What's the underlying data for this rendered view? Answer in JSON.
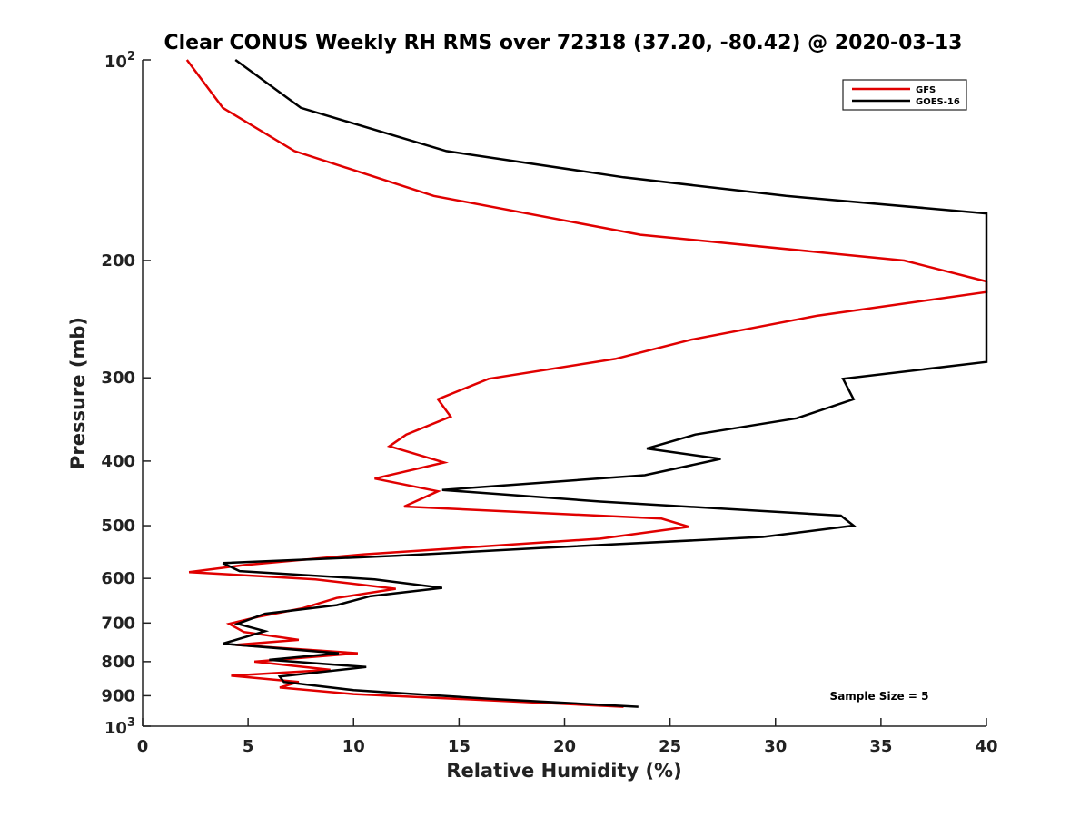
{
  "chart_data": {
    "type": "line",
    "title": "Clear CONUS Weekly RH RMS over 72318 (37.20, -80.42) @ 2020-03-13",
    "xlabel": "Relative Humidity (%)",
    "ylabel": "Pressure (mb)",
    "xlim": [
      0,
      40
    ],
    "ylim": [
      100,
      1000
    ],
    "y_scale": "log",
    "y_reversed": true,
    "grid": false,
    "legend_position": "top-right",
    "x_ticks": [
      0,
      5,
      10,
      15,
      20,
      25,
      30,
      35,
      40
    ],
    "x_tick_labels": [
      "0",
      "5",
      "10",
      "15",
      "20",
      "25",
      "30",
      "35",
      "40"
    ],
    "y_ticks": [
      200,
      300,
      400,
      500,
      600,
      700,
      800,
      900
    ],
    "y_tick_labels": [
      "200",
      "300",
      "400",
      "500",
      "600",
      "700",
      "800",
      "900"
    ],
    "y_end_labels": [
      {
        "value": 100,
        "base": "10",
        "exp": "2"
      },
      {
        "value": 1000,
        "base": "10",
        "exp": "3"
      }
    ],
    "annotation": "Sample Size = 5",
    "series": [
      {
        "name": "GFS",
        "color": "#e00000",
        "points": [
          [
            2.1,
            100
          ],
          [
            3.8,
            118
          ],
          [
            7.2,
            137
          ],
          [
            13.8,
            160
          ],
          [
            23.6,
            183
          ],
          [
            36.1,
            200
          ],
          [
            40.0,
            215
          ],
          [
            40.0,
            223
          ],
          [
            32.0,
            242
          ],
          [
            26.0,
            263
          ],
          [
            22.4,
            281
          ],
          [
            16.4,
            301
          ],
          [
            14.0,
            323
          ],
          [
            14.6,
            343
          ],
          [
            12.5,
            365
          ],
          [
            11.7,
            380
          ],
          [
            14.3,
            402
          ],
          [
            11.0,
            425
          ],
          [
            14.0,
            444
          ],
          [
            12.4,
            468
          ],
          [
            24.6,
            488
          ],
          [
            25.9,
            502
          ],
          [
            21.7,
            523
          ],
          [
            10.5,
            552
          ],
          [
            4.8,
            573
          ],
          [
            2.2,
            587
          ],
          [
            8.2,
            602
          ],
          [
            12.0,
            622
          ],
          [
            9.2,
            642
          ],
          [
            7.6,
            665
          ],
          [
            5.5,
            685
          ],
          [
            4.1,
            702
          ],
          [
            4.8,
            722
          ],
          [
            7.4,
            742
          ],
          [
            4.4,
            755
          ],
          [
            10.2,
            777
          ],
          [
            5.3,
            800
          ],
          [
            8.9,
            823
          ],
          [
            4.2,
            840
          ],
          [
            7.4,
            858
          ],
          [
            6.5,
            875
          ],
          [
            10.0,
            895
          ],
          [
            16.0,
            913
          ],
          [
            22.8,
            935
          ]
        ]
      },
      {
        "name": "GOES-16",
        "color": "#000000",
        "points": [
          [
            4.4,
            100
          ],
          [
            7.5,
            118
          ],
          [
            14.4,
            137
          ],
          [
            22.8,
            150
          ],
          [
            30.5,
            160
          ],
          [
            40.0,
            170
          ],
          [
            40.0,
            284
          ],
          [
            33.2,
            301
          ],
          [
            33.7,
            323
          ],
          [
            31.0,
            345
          ],
          [
            26.2,
            365
          ],
          [
            23.9,
            383
          ],
          [
            27.4,
            397
          ],
          [
            23.8,
            420
          ],
          [
            14.2,
            442
          ],
          [
            21.7,
            460
          ],
          [
            33.1,
            483
          ],
          [
            33.7,
            500
          ],
          [
            29.4,
            520
          ],
          [
            18.9,
            540
          ],
          [
            12.0,
            555
          ],
          [
            3.8,
            569
          ],
          [
            4.6,
            585
          ],
          [
            11.0,
            602
          ],
          [
            14.2,
            620
          ],
          [
            10.8,
            638
          ],
          [
            9.2,
            658
          ],
          [
            5.8,
            678
          ],
          [
            4.5,
            702
          ],
          [
            5.8,
            720
          ],
          [
            3.8,
            752
          ],
          [
            9.3,
            777
          ],
          [
            6.0,
            795
          ],
          [
            10.6,
            815
          ],
          [
            6.5,
            842
          ],
          [
            6.7,
            858
          ],
          [
            10.0,
            883
          ],
          [
            16.5,
            910
          ],
          [
            23.5,
            935
          ]
        ]
      }
    ]
  }
}
